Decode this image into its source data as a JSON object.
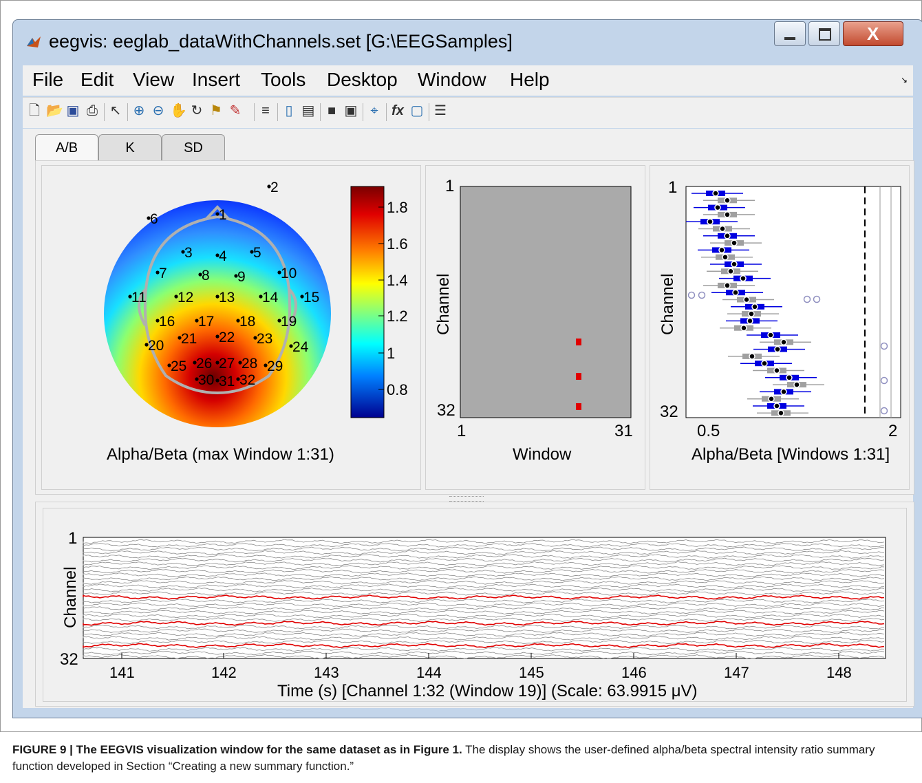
{
  "window": {
    "title": "eegvis: eeglab_dataWithChannels.set [G:\\EEGSamples]"
  },
  "menu": [
    "File",
    "Edit",
    "View",
    "Insert",
    "Tools",
    "Desktop",
    "Window",
    "Help"
  ],
  "tabs": [
    "A/B",
    "K",
    "SD"
  ],
  "active_tab": "A/B",
  "topoplot": {
    "xlabel": "Alpha/Beta (max Window 1:31)",
    "colorbar_ticks": [
      "1.8",
      "1.6",
      "1.4",
      "1.2",
      "1",
      "0.8"
    ],
    "electrodes": [
      "1",
      "2",
      "3",
      "4",
      "5",
      "6",
      "7",
      "8",
      "9",
      "10",
      "11",
      "12",
      "13",
      "14",
      "15",
      "16",
      "17",
      "18",
      "19",
      "20",
      "21",
      "22",
      "23",
      "24",
      "25",
      "26",
      "27",
      "28",
      "29",
      "30",
      "31",
      "32"
    ]
  },
  "element_plot": {
    "ylabel": "Channel",
    "xlabel": "Window",
    "y_ticks": [
      "1",
      "32"
    ],
    "x_ticks": [
      "1",
      "31"
    ],
    "highlight_color": "#e00000"
  },
  "boxplot": {
    "ylabel": "Channel",
    "xlabel": "Alpha/Beta [Windows 1:31]",
    "y_ticks": [
      "1",
      "32"
    ],
    "x_ticks": [
      "0.5",
      "1",
      "2"
    ],
    "series_colors": {
      "blue": "#0000e0",
      "gray": "#a0a0a0"
    }
  },
  "signal_plot": {
    "ylabel": "Channel",
    "xlabel": "Time (s) [Channel 1:32 (Window 19)] (Scale: 63.9915 μV)",
    "y_ticks": [
      "1",
      "32"
    ],
    "x_ticks": [
      "141",
      "142",
      "143",
      "144",
      "145",
      "146",
      "147",
      "148"
    ],
    "highlight_color": "#e00000"
  },
  "caption": {
    "bold": "FIGURE 9 | The EEGVIS visualization window for the same dataset as in Figure 1.",
    "text": " The display shows the user-defined alpha/beta spectral intensity ratio summary function developed in Section “Creating a new summary function.”"
  }
}
